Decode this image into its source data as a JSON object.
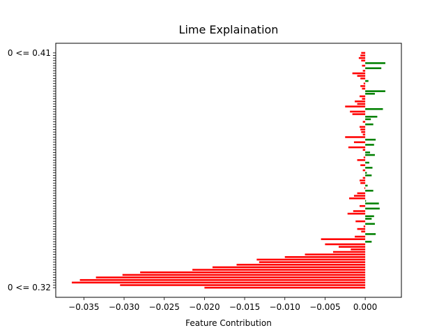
{
  "chart_data": {
    "type": "bar",
    "orientation": "horizontal",
    "title": "Lime Explaination",
    "xlabel": "Feature Contribution",
    "ylabel": "",
    "xlim": [
      -0.0385,
      0.0045
    ],
    "xticks": [
      -0.035,
      -0.03,
      -0.025,
      -0.02,
      -0.015,
      -0.01,
      -0.005,
      0.0
    ],
    "xtick_labels": [
      "−0.035",
      "−0.030",
      "−0.025",
      "−0.020",
      "−0.015",
      "−0.010",
      "−0.005",
      "0.000"
    ],
    "top_label": "0 <= 0.41",
    "bottom_label": "0 <= 0.32",
    "positive_color": "#008000",
    "negative_color": "#ff0000",
    "values": [
      -0.0005,
      -0.0006,
      -0.0008,
      -0.0005,
      0.0025,
      -0.0004,
      0.002,
      -0.0003,
      -0.0016,
      -0.001,
      -0.0006,
      0.0004,
      -0.0002,
      -0.0006,
      -0.0004,
      0.0025,
      0.0012,
      -0.0007,
      -0.0004,
      -0.0013,
      -0.001,
      -0.0025,
      0.0022,
      -0.0019,
      -0.0016,
      0.0015,
      0.0007,
      -0.0003,
      0.001,
      -0.0007,
      -0.0006,
      -0.0005,
      -0.0003,
      -0.0025,
      0.0013,
      -0.0014,
      0.0011,
      -0.0021,
      -0.0003,
      0.0006,
      0.0012,
      -0.0002,
      -0.001,
      0.0005,
      -0.0006,
      0.0009,
      -0.0003,
      0.0002,
      0.0008,
      -0.0003,
      -0.0007,
      -0.0006,
      0.0003,
      -0.0001,
      0.001,
      -0.001,
      -0.0014,
      -0.002,
      0.0001,
      0.0017,
      -0.0007,
      0.0018,
      -0.0015,
      -0.0022,
      0.0011,
      0.0008,
      -0.0012,
      0.0012,
      -0.0002,
      -0.001,
      -0.0005,
      0.0013,
      -0.0013,
      -0.0055,
      0.0008,
      -0.005,
      -0.0033,
      -0.0018,
      -0.004,
      -0.0075,
      -0.01,
      -0.0135,
      -0.0132,
      -0.016,
      -0.019,
      -0.0215,
      -0.028,
      -0.0302,
      -0.0335,
      -0.0355,
      -0.0365,
      -0.0305,
      -0.02
    ]
  }
}
